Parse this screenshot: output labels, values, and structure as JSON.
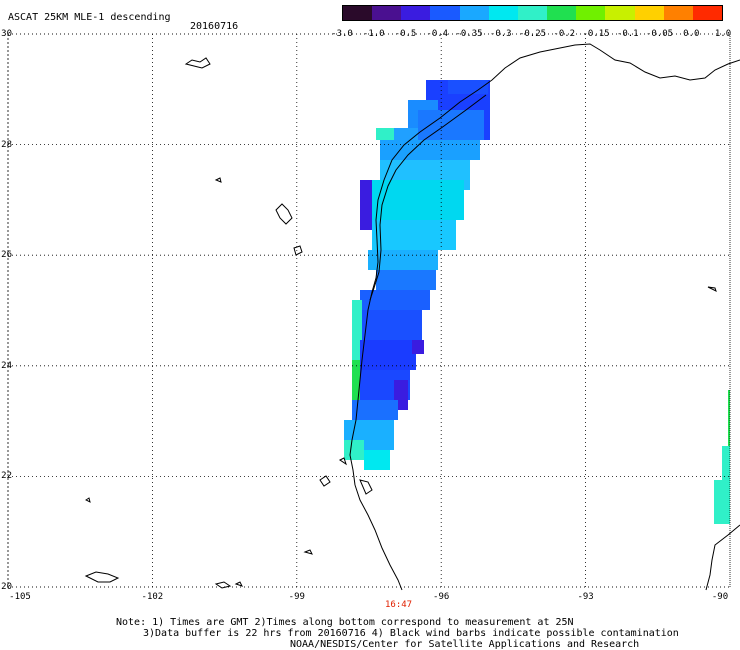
{
  "header": {
    "title": "ASCAT 25KM MLE-1 descending",
    "date": "20160716"
  },
  "colorbar": {
    "labels": [
      "-3.0",
      "-1.0",
      "-0.5",
      "-0.4",
      "-0.35",
      "-0.3",
      "-0.25",
      "-0.2",
      "-0.15",
      "-0.1",
      "-0.05",
      "0.0",
      "1.0"
    ],
    "colors": [
      "#2a0a2a",
      "#4a1090",
      "#3a1ce0",
      "#1a5aff",
      "#1aa8ff",
      "#00e8f0",
      "#30f0c8",
      "#20e050",
      "#70f000",
      "#c8f000",
      "#ffd000",
      "#ff8000",
      "#ff2a00"
    ]
  },
  "axes": {
    "lat_labels": [
      "30",
      "28",
      "26",
      "24",
      "22",
      "20"
    ],
    "lon_labels": [
      "-105",
      "-102",
      "-99",
      "-96",
      "-93",
      "-90"
    ],
    "lon_min": -105,
    "lon_max": -90,
    "lat_min": 20,
    "lat_max": 30
  },
  "time_label": "16:47",
  "notes": {
    "line1": "Note: 1) Times are GMT 2)Times along bottom correspond to measurement at 25N",
    "line2": "3)Data buffer is 22 hrs from 20160716 4) Black wind barbs indicate possible contamination",
    "line3": "NOAA/NESDIS/Center for Satellite Applications and Research"
  }
}
